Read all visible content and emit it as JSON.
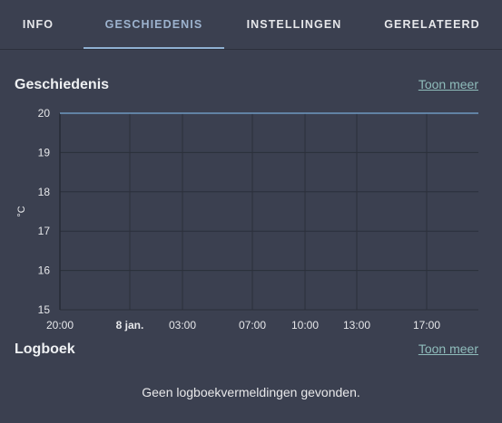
{
  "tabs": [
    {
      "label": "INFO",
      "active": false
    },
    {
      "label": "GESCHIEDENIS",
      "active": true
    },
    {
      "label": "INSTELLINGEN",
      "active": false
    },
    {
      "label": "GERELATEERD",
      "active": false
    }
  ],
  "history": {
    "title": "Geschiedenis",
    "more_label": "Toon meer"
  },
  "logbook": {
    "title": "Logboek",
    "more_label": "Toon meer",
    "empty_text": "Geen logboekvermeldingen gevonden."
  },
  "colors": {
    "background": "#3b4050",
    "accent": "#8fb0d2",
    "link": "#8fbcbb",
    "series": "#6e98c0"
  },
  "chart_data": {
    "type": "line",
    "ylabel": "°C",
    "ylim": [
      15,
      20
    ],
    "y_ticks": [
      20,
      19,
      18,
      17,
      16,
      15
    ],
    "x_ticks": [
      {
        "label": "20:00",
        "bold": false
      },
      {
        "label": "8 jan.",
        "bold": true
      },
      {
        "label": "03:00",
        "bold": false
      },
      {
        "label": "07:00",
        "bold": false
      },
      {
        "label": "10:00",
        "bold": false
      },
      {
        "label": "13:00",
        "bold": false
      },
      {
        "label": "17:00",
        "bold": false
      }
    ],
    "series": [
      {
        "values": [
          20,
          20,
          20,
          20,
          20,
          20,
          20,
          20
        ]
      }
    ],
    "grid": true
  }
}
